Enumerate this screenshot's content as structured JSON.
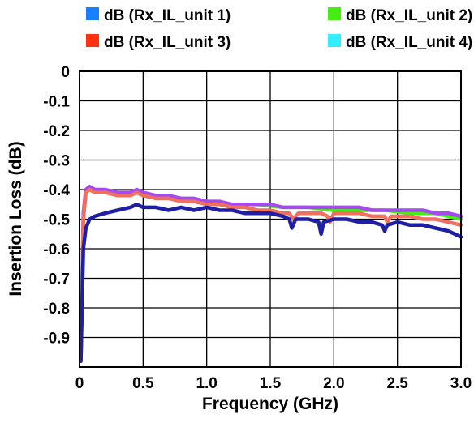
{
  "chart_data": {
    "type": "line",
    "title": "",
    "xlabel": "Frequency (GHz)",
    "ylabel": "Insertion Loss (dB)",
    "xlim": [
      0,
      3.0
    ],
    "ylim": [
      -1.0,
      0
    ],
    "x_ticks": [
      0,
      0.5,
      1.0,
      1.5,
      2.0,
      2.5,
      3.0
    ],
    "x_tick_labels": [
      "0",
      "0.5",
      "1.0",
      "1.5",
      "2.0",
      "2.5",
      "3.0"
    ],
    "y_ticks": [
      0,
      -0.1,
      -0.2,
      -0.3,
      -0.4,
      -0.5,
      -0.6,
      -0.7,
      -0.8,
      -0.9
    ],
    "y_tick_labels": [
      "0",
      "-0.1",
      "-0.2",
      "-0.3",
      "-0.4",
      "-0.5",
      "-0.6",
      "-0.7",
      "-0.8",
      "-0.9"
    ],
    "grid": true,
    "legend_position": "top",
    "series": [
      {
        "name": "dB (Rx_IL_unit 1)",
        "legend_color": "#1a7fff",
        "line_color": "#1f1fa6",
        "x": [
          0.01,
          0.03,
          0.05,
          0.08,
          0.12,
          0.2,
          0.3,
          0.4,
          0.45,
          0.5,
          0.6,
          0.7,
          0.8,
          0.9,
          1.0,
          1.1,
          1.2,
          1.3,
          1.4,
          1.5,
          1.6,
          1.65,
          1.67,
          1.7,
          1.8,
          1.88,
          1.9,
          1.92,
          2.0,
          2.1,
          2.2,
          2.3,
          2.38,
          2.4,
          2.42,
          2.5,
          2.6,
          2.7,
          2.8,
          2.9,
          3.0
        ],
        "y": [
          -0.98,
          -0.6,
          -0.53,
          -0.5,
          -0.49,
          -0.48,
          -0.47,
          -0.46,
          -0.45,
          -0.46,
          -0.46,
          -0.47,
          -0.46,
          -0.47,
          -0.46,
          -0.47,
          -0.47,
          -0.48,
          -0.48,
          -0.48,
          -0.49,
          -0.5,
          -0.53,
          -0.5,
          -0.5,
          -0.51,
          -0.55,
          -0.51,
          -0.5,
          -0.5,
          -0.51,
          -0.51,
          -0.52,
          -0.54,
          -0.52,
          -0.51,
          -0.52,
          -0.52,
          -0.53,
          -0.54,
          -0.56
        ]
      },
      {
        "name": "dB (Rx_IL_unit 2)",
        "legend_color": "#44ee11",
        "line_color": "#44ee11",
        "x": [
          0.01,
          0.03,
          0.05,
          0.08,
          0.15,
          0.3,
          0.45,
          0.6,
          0.8,
          1.0,
          1.2,
          1.4,
          1.6,
          1.8,
          2.0,
          2.2,
          2.4,
          2.6,
          2.8,
          3.0
        ],
        "y": [
          -0.98,
          -0.5,
          -0.41,
          -0.4,
          -0.4,
          -0.41,
          -0.41,
          -0.42,
          -0.43,
          -0.44,
          -0.45,
          -0.45,
          -0.46,
          -0.46,
          -0.47,
          -0.47,
          -0.47,
          -0.48,
          -0.48,
          -0.5
        ]
      },
      {
        "name": "dB (Rx_IL_unit 3)",
        "legend_color": "#ff3311",
        "line_color": "#f07060",
        "x": [
          0.01,
          0.03,
          0.05,
          0.08,
          0.12,
          0.2,
          0.3,
          0.4,
          0.45,
          0.5,
          0.6,
          0.7,
          0.8,
          0.9,
          1.0,
          1.1,
          1.2,
          1.3,
          1.4,
          1.5,
          1.6,
          1.65,
          1.68,
          1.72,
          1.8,
          1.9,
          1.95,
          1.97,
          2.0,
          2.1,
          2.2,
          2.3,
          2.4,
          2.42,
          2.45,
          2.5,
          2.6,
          2.7,
          2.8,
          2.9,
          3.0
        ],
        "y": [
          -0.98,
          -0.5,
          -0.41,
          -0.4,
          -0.41,
          -0.41,
          -0.42,
          -0.42,
          -0.41,
          -0.42,
          -0.43,
          -0.43,
          -0.44,
          -0.44,
          -0.45,
          -0.45,
          -0.46,
          -0.46,
          -0.47,
          -0.47,
          -0.48,
          -0.48,
          -0.5,
          -0.48,
          -0.48,
          -0.48,
          -0.49,
          -0.51,
          -0.48,
          -0.48,
          -0.48,
          -0.49,
          -0.49,
          -0.51,
          -0.49,
          -0.49,
          -0.49,
          -0.5,
          -0.5,
          -0.51,
          -0.52
        ]
      },
      {
        "name": "dB (Rx_IL_unit 4)",
        "legend_color": "#33eeff",
        "line_color": "#a54aee",
        "x": [
          0.01,
          0.03,
          0.05,
          0.08,
          0.12,
          0.2,
          0.3,
          0.4,
          0.45,
          0.5,
          0.6,
          0.7,
          0.8,
          0.9,
          1.0,
          1.1,
          1.2,
          1.3,
          1.4,
          1.5,
          1.6,
          1.7,
          1.8,
          1.9,
          2.0,
          2.1,
          2.2,
          2.3,
          2.4,
          2.5,
          2.6,
          2.7,
          2.8,
          2.9,
          3.0
        ],
        "y": [
          -0.98,
          -0.48,
          -0.4,
          -0.39,
          -0.4,
          -0.4,
          -0.41,
          -0.41,
          -0.4,
          -0.41,
          -0.42,
          -0.42,
          -0.43,
          -0.43,
          -0.44,
          -0.44,
          -0.45,
          -0.45,
          -0.45,
          -0.45,
          -0.46,
          -0.46,
          -0.46,
          -0.46,
          -0.46,
          -0.46,
          -0.46,
          -0.47,
          -0.47,
          -0.47,
          -0.47,
          -0.47,
          -0.48,
          -0.48,
          -0.49
        ]
      }
    ]
  }
}
